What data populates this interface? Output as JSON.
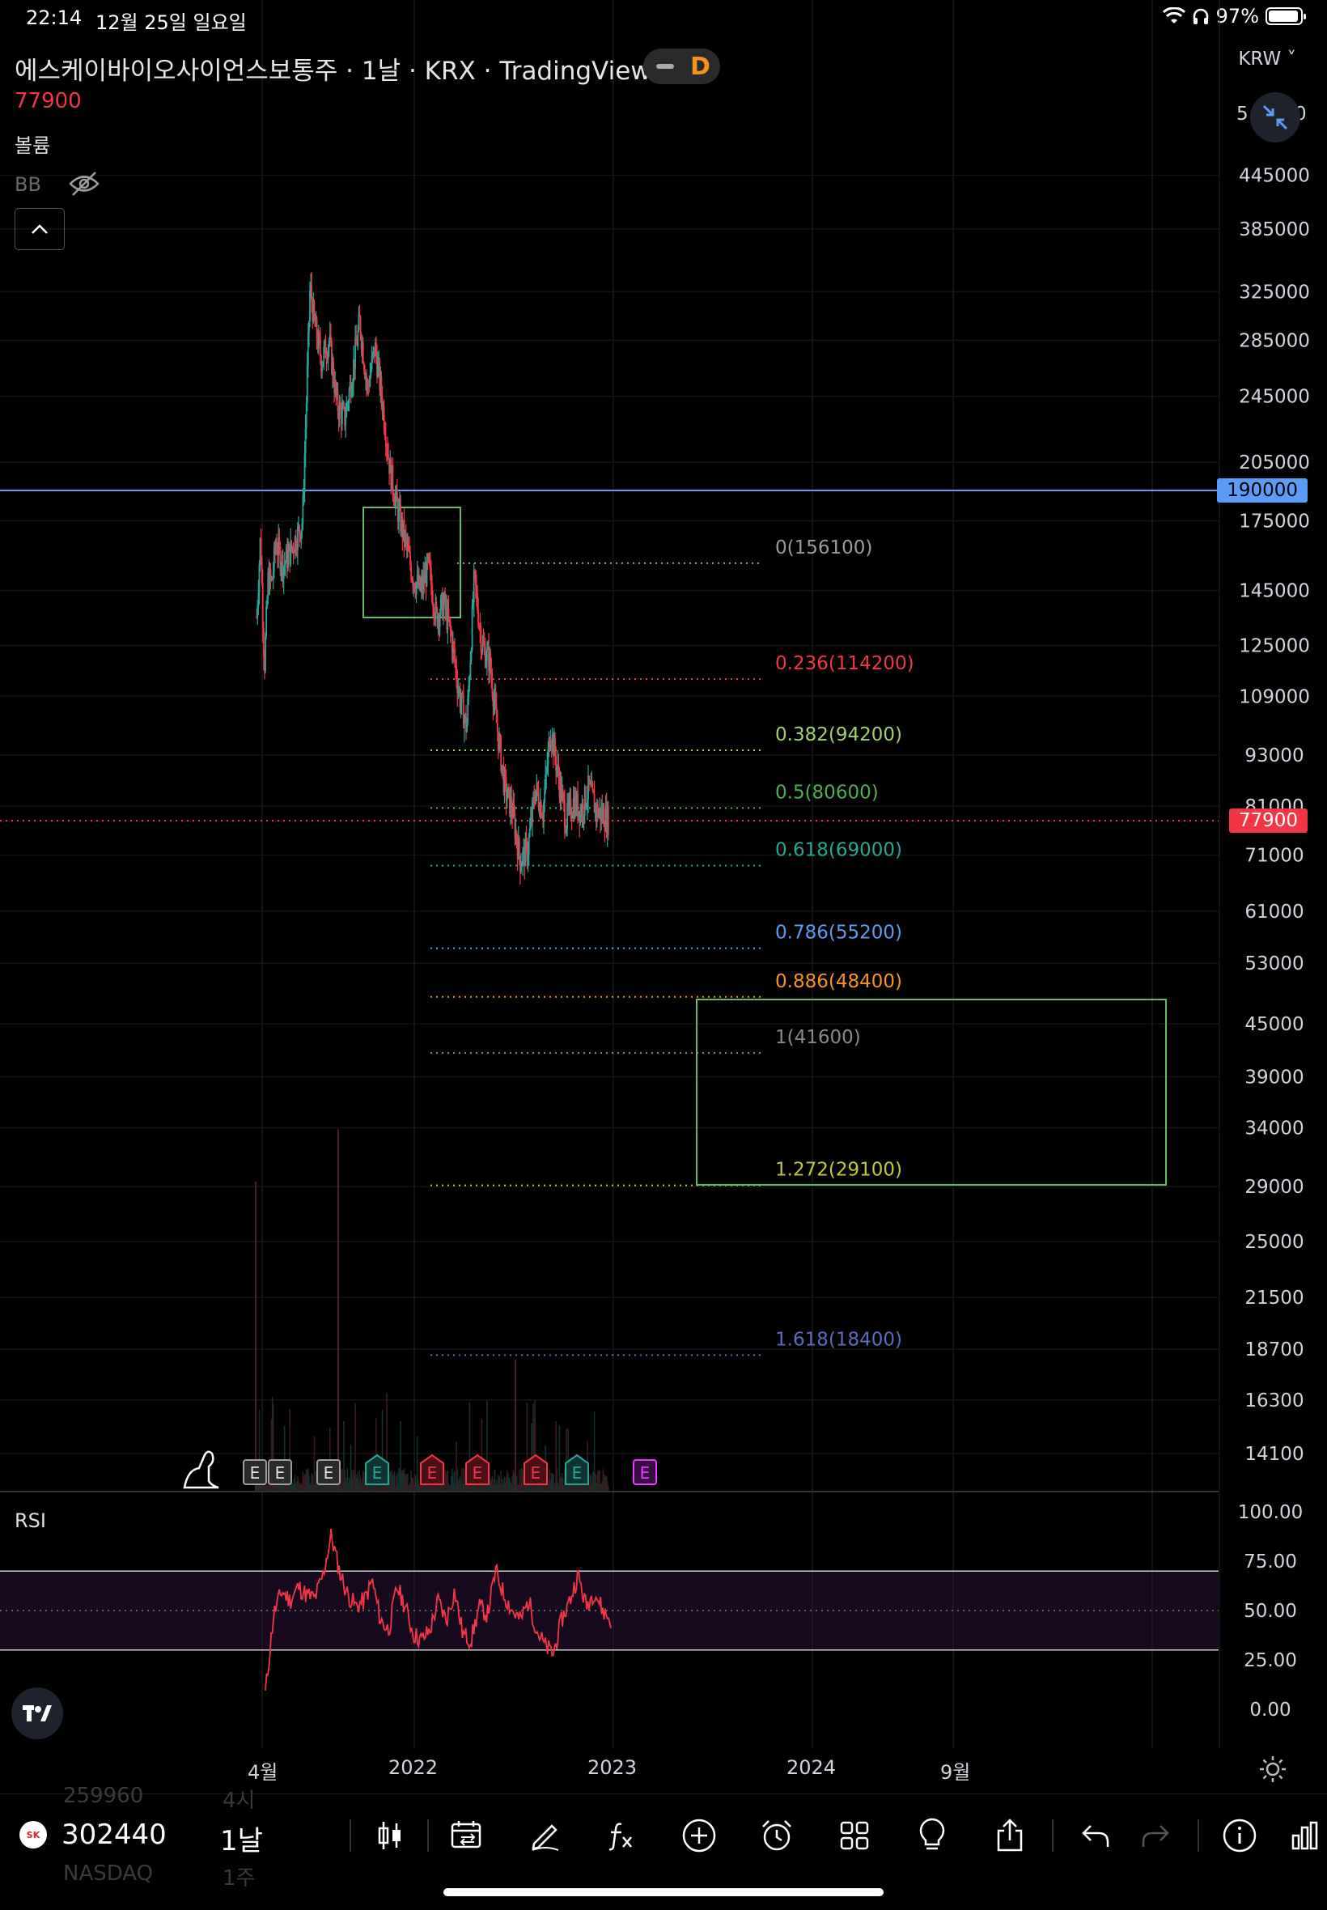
{
  "status": {
    "time": "22:14",
    "date": "12월 25일 일요일",
    "battery": "97%",
    "battery_level": 0.97
  },
  "header": {
    "title": "에스케이바이오사이언스보통주 · 1날 · KRX · TradingView",
    "interval_badge": "D",
    "last_price": "77900",
    "volume_label": "볼륨",
    "bb_label": "BB",
    "currency": "KRW ˅",
    "top_axis_value": "5",
    "top_axis_value_suffix": "0"
  },
  "price_axis": [
    "445000",
    "385000",
    "325000",
    "285000",
    "245000",
    "205000",
    "175000",
    "145000",
    "125000",
    "109000",
    "93000",
    "81000",
    "71000",
    "61000",
    "53000",
    "45000",
    "39000",
    "34000",
    "29000",
    "25000",
    "21500",
    "18700",
    "16300",
    "14100"
  ],
  "price_tags": {
    "line": "190000",
    "last": "77900"
  },
  "fib_levels": [
    {
      "label": "0(156100)",
      "color": "#9b9b9b"
    },
    {
      "label": "0.236(114200)",
      "color": "#f23645"
    },
    {
      "label": "0.382(94200)",
      "color": "#a4d06f"
    },
    {
      "label": "0.5(80600)",
      "color": "#4caf50"
    },
    {
      "label": "0.618(69000)",
      "color": "#26a69a"
    },
    {
      "label": "0.786(55200)",
      "color": "#5b9cf6"
    },
    {
      "label": "0.886(48400)",
      "color": "#f7931a"
    },
    {
      "label": "1(41600)",
      "color": "#8a8a8a"
    },
    {
      "label": "1.272(29100)",
      "color": "#c0ca33"
    },
    {
      "label": "1.618(18400)",
      "color": "#5c6bc0"
    }
  ],
  "earnings_marker": "E",
  "rsi": {
    "label": "RSI",
    "axis": [
      "100.00",
      "75.00",
      "50.00",
      "25.00",
      "0.00"
    ]
  },
  "time_axis": [
    "4월",
    "2022",
    "2023",
    "2024",
    "9월"
  ],
  "toolbar": {
    "symbol": "302440",
    "interval": "1날",
    "ghost_symbol_above": "259960",
    "ghost_interval_above": "4시",
    "ghost_symbol_below": "NASDAQ",
    "ghost_interval_below": "1주",
    "logo_text": "SK"
  },
  "colors": {
    "up": "#26a69a",
    "down": "#f23645",
    "accent": "#5b9cf6",
    "rsi_line": "#f23645",
    "rsi_band": "#2a1236"
  },
  "chart_data": {
    "type": "line",
    "title": "",
    "ylabel": "",
    "xlabel": "",
    "scale": "log",
    "ylim": [
      13000,
      560000
    ],
    "horizontal_lines": [
      190000,
      77900
    ],
    "fibonacci": [
      156100,
      114200,
      94200,
      80600,
      69000,
      55200,
      48400,
      41600,
      29100,
      18400
    ],
    "series": [
      {
        "x": [
          "2021-03-18",
          "2021-03-25",
          "2021-04-01",
          "2021-04-08",
          "2021-04-15",
          "2021-04-22",
          "2021-05-06",
          "2021-05-20",
          "2021-06-03",
          "2021-06-10",
          "2021-06-17",
          "2021-06-24",
          "2021-07-01",
          "2021-07-15",
          "2021-07-29",
          "2021-08-12",
          "2021-08-26",
          "2021-09-09",
          "2021-09-23",
          "2021-10-07",
          "2021-10-21",
          "2021-11-04",
          "2021-11-18",
          "2021-12-02",
          "2021-12-16",
          "2021-12-30",
          "2022-01-13",
          "2022-01-27",
          "2022-02-10",
          "2022-02-24",
          "2022-03-10",
          "2022-03-24",
          "2022-04-07",
          "2022-04-21",
          "2022-05-05",
          "2022-05-19",
          "2022-06-02",
          "2022-06-16",
          "2022-06-30",
          "2022-07-14",
          "2022-07-28",
          "2022-08-11",
          "2022-08-25",
          "2022-09-08",
          "2022-09-22",
          "2022-10-06",
          "2022-10-20",
          "2022-11-03",
          "2022-11-17",
          "2022-12-01",
          "2022-12-15",
          "2022-12-23"
        ],
        "values": [
          135000,
          168000,
          118000,
          150000,
          148000,
          165000,
          155000,
          162000,
          170000,
          175000,
          240000,
          330000,
          300000,
          270000,
          285000,
          240000,
          230000,
          260000,
          300000,
          250000,
          280000,
          240000,
          200000,
          180000,
          165000,
          150000,
          145000,
          155000,
          135000,
          140000,
          128000,
          110000,
          100000,
          150000,
          125000,
          120000,
          100000,
          85000,
          80000,
          70000,
          72000,
          85000,
          80000,
          100000,
          88000,
          78000,
          82000,
          80000,
          85000,
          80000,
          79000,
          77900
        ]
      }
    ],
    "rsi_values": [
      8,
      48,
      60,
      55,
      62,
      58,
      56,
      68,
      88,
      70,
      58,
      52,
      55,
      65,
      45,
      40,
      62,
      52,
      38,
      35,
      40,
      55,
      45,
      60,
      38,
      35,
      52,
      48,
      70,
      58,
      50,
      45,
      55,
      40,
      32,
      28,
      45,
      55,
      68,
      52,
      60,
      50,
      45
    ]
  }
}
